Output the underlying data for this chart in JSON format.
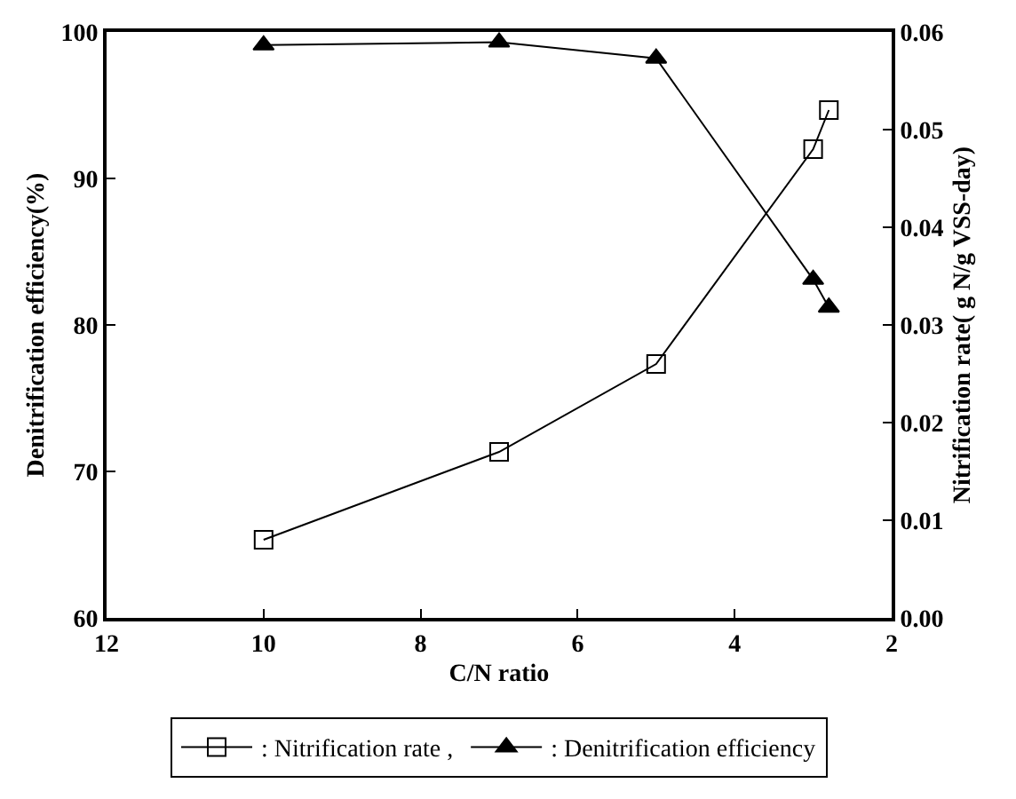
{
  "chart_data": {
    "type": "line",
    "xlabel": "C/N ratio",
    "ylabel": "Denitrification efficiency(%)",
    "y2label": "Nitrification rate( g N/g VSS-day)",
    "x": [
      10,
      7,
      5,
      3,
      2.8
    ],
    "series": [
      {
        "name": ": Nitrification rate ,",
        "color": "#000000",
        "axis": "y2",
        "marker": "square",
        "values": [
          0.008,
          0.017,
          0.026,
          0.048,
          0.052
        ]
      },
      {
        "name": ": Denitrification efficiency",
        "color": "#000000",
        "marker": "triangle",
        "values": [
          99.1,
          99.3,
          98.2,
          83.1,
          81.2
        ]
      }
    ],
    "xlim": [
      12,
      2
    ],
    "xticks": [
      12,
      10,
      8,
      6,
      4,
      2
    ],
    "ylim": [
      60,
      100
    ],
    "yticks": [
      60,
      70,
      80,
      90,
      100
    ],
    "y2lim": [
      0,
      0.06
    ],
    "y2ticks": [
      {
        "value": 0,
        "label": "0.00"
      },
      0.01,
      0.02,
      0.03,
      0.04,
      0.05,
      0.06
    ],
    "legend": "bottom",
    "line_style": "solid"
  }
}
